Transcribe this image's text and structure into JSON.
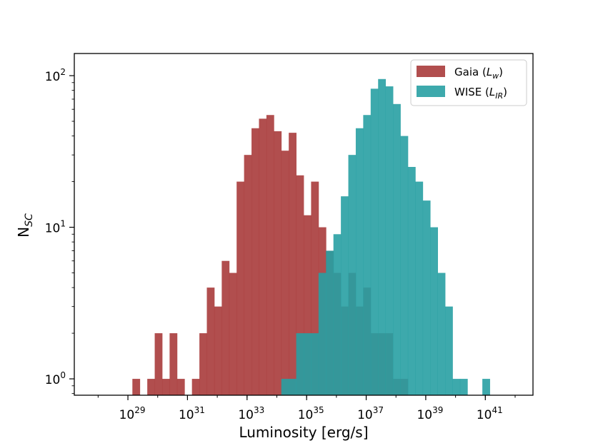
{
  "chart_data": {
    "type": "bar",
    "subtype": "histogram",
    "xlabel": "Luminosity [erg/s]",
    "ylabel": {
      "base": "N",
      "subscript": "SC"
    },
    "xscale": "log",
    "yscale": "log",
    "xlim_log10": [
      27.2,
      42.6
    ],
    "ylim": [
      0.78,
      140
    ],
    "grid": false,
    "legend": {
      "placement": "top-right"
    },
    "x_ticks": [
      {
        "base": "10",
        "exp": "29"
      },
      {
        "base": "10",
        "exp": "31"
      },
      {
        "base": "10",
        "exp": "33"
      },
      {
        "base": "10",
        "exp": "35"
      },
      {
        "base": "10",
        "exp": "37"
      },
      {
        "base": "10",
        "exp": "39"
      },
      {
        "base": "10",
        "exp": "41"
      }
    ],
    "y_ticks": [
      {
        "base": "10",
        "exp": "0"
      },
      {
        "base": "10",
        "exp": "1"
      },
      {
        "base": "10",
        "exp": "2"
      }
    ],
    "bin_width_log10": 0.25,
    "series": [
      {
        "name": "Gaia",
        "name_symbol": {
          "base": "L",
          "subscript": "w"
        },
        "color": "#a83b3b",
        "opacity": 0.9,
        "bins": [
          {
            "log10_left": 29.15,
            "count": 1
          },
          {
            "log10_left": 29.65,
            "count": 1
          },
          {
            "log10_left": 29.9,
            "count": 2
          },
          {
            "log10_left": 30.15,
            "count": 1
          },
          {
            "log10_left": 30.4,
            "count": 2
          },
          {
            "log10_left": 30.65,
            "count": 1
          },
          {
            "log10_left": 31.15,
            "count": 1
          },
          {
            "log10_left": 31.4,
            "count": 2
          },
          {
            "log10_left": 31.65,
            "count": 4
          },
          {
            "log10_left": 31.9,
            "count": 3
          },
          {
            "log10_left": 32.15,
            "count": 6
          },
          {
            "log10_left": 32.4,
            "count": 5
          },
          {
            "log10_left": 32.65,
            "count": 20
          },
          {
            "log10_left": 32.9,
            "count": 30
          },
          {
            "log10_left": 33.15,
            "count": 45
          },
          {
            "log10_left": 33.4,
            "count": 52
          },
          {
            "log10_left": 33.65,
            "count": 55
          },
          {
            "log10_left": 33.9,
            "count": 43
          },
          {
            "log10_left": 34.15,
            "count": 32
          },
          {
            "log10_left": 34.4,
            "count": 42
          },
          {
            "log10_left": 34.65,
            "count": 22
          },
          {
            "log10_left": 34.9,
            "count": 12
          },
          {
            "log10_left": 35.15,
            "count": 20
          },
          {
            "log10_left": 35.4,
            "count": 10
          },
          {
            "log10_left": 35.65,
            "count": 7
          },
          {
            "log10_left": 35.9,
            "count": 5
          },
          {
            "log10_left": 36.15,
            "count": 3
          },
          {
            "log10_left": 36.4,
            "count": 5
          },
          {
            "log10_left": 36.65,
            "count": 3
          },
          {
            "log10_left": 36.9,
            "count": 4
          },
          {
            "log10_left": 37.15,
            "count": 2
          },
          {
            "log10_left": 37.4,
            "count": 2
          },
          {
            "log10_left": 37.65,
            "count": 2
          },
          {
            "log10_left": 37.9,
            "count": 1
          },
          {
            "log10_left": 38.15,
            "count": 1
          }
        ]
      },
      {
        "name": "WISE",
        "name_symbol": {
          "base": "L",
          "subscript": "IR"
        },
        "color": "#28a0a3",
        "opacity": 0.9,
        "bins": [
          {
            "log10_left": 34.15,
            "count": 1
          },
          {
            "log10_left": 34.4,
            "count": 1
          },
          {
            "log10_left": 34.65,
            "count": 2
          },
          {
            "log10_left": 34.9,
            "count": 2
          },
          {
            "log10_left": 35.15,
            "count": 2
          },
          {
            "log10_left": 35.4,
            "count": 5
          },
          {
            "log10_left": 35.65,
            "count": 7
          },
          {
            "log10_left": 35.9,
            "count": 9
          },
          {
            "log10_left": 36.15,
            "count": 16
          },
          {
            "log10_left": 36.4,
            "count": 30
          },
          {
            "log10_left": 36.65,
            "count": 45
          },
          {
            "log10_left": 36.9,
            "count": 55
          },
          {
            "log10_left": 37.15,
            "count": 82
          },
          {
            "log10_left": 37.4,
            "count": 95
          },
          {
            "log10_left": 37.65,
            "count": 85
          },
          {
            "log10_left": 37.9,
            "count": 65
          },
          {
            "log10_left": 38.15,
            "count": 40
          },
          {
            "log10_left": 38.4,
            "count": 25
          },
          {
            "log10_left": 38.65,
            "count": 20
          },
          {
            "log10_left": 38.9,
            "count": 15
          },
          {
            "log10_left": 39.15,
            "count": 10
          },
          {
            "log10_left": 39.4,
            "count": 5
          },
          {
            "log10_left": 39.65,
            "count": 3
          },
          {
            "log10_left": 39.9,
            "count": 1
          },
          {
            "log10_left": 40.15,
            "count": 1
          },
          {
            "log10_left": 40.9,
            "count": 1
          }
        ]
      }
    ]
  }
}
